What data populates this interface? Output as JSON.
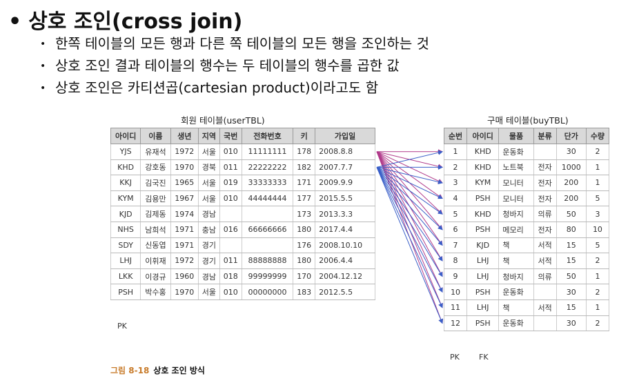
{
  "heading": "상호 조인(cross join)",
  "heading_bullet": "•",
  "bullets": [
    "한쪽 테이블의 모든 행과 다른 쪽 테이블의 모든 행을 조인하는 것",
    "상호 조인 결과 테이블의 행수는 두 테이블의 행수를 곱한 값",
    "상호 조인은 카티션곱(cartesian product)이라고도 함"
  ],
  "user_table": {
    "caption": "회원 테이블(userTBL)",
    "columns": [
      "아이디",
      "이름",
      "생년",
      "지역",
      "국번",
      "전화번호",
      "키",
      "가입일"
    ],
    "rows": [
      [
        "YJS",
        "유재석",
        "1972",
        "서울",
        "010",
        "11111111",
        "178",
        "2008.8.8"
      ],
      [
        "KHD",
        "강호동",
        "1970",
        "경북",
        "011",
        "22222222",
        "182",
        "2007.7.7"
      ],
      [
        "KKJ",
        "김국진",
        "1965",
        "서울",
        "019",
        "33333333",
        "171",
        "2009.9.9"
      ],
      [
        "KYM",
        "김용만",
        "1967",
        "서울",
        "010",
        "44444444",
        "177",
        "2015.5.5"
      ],
      [
        "KJD",
        "김제동",
        "1974",
        "경남",
        "",
        "",
        "173",
        "2013.3.3"
      ],
      [
        "NHS",
        "남희석",
        "1971",
        "충남",
        "016",
        "66666666",
        "180",
        "2017.4.4"
      ],
      [
        "SDY",
        "신동엽",
        "1971",
        "경기",
        "",
        "",
        "176",
        "2008.10.10"
      ],
      [
        "LHJ",
        "이휘재",
        "1972",
        "경기",
        "011",
        "88888888",
        "180",
        "2006.4.4"
      ],
      [
        "LKK",
        "이경규",
        "1960",
        "경남",
        "018",
        "99999999",
        "170",
        "2004.12.12"
      ],
      [
        "PSH",
        "박수홍",
        "1970",
        "서울",
        "010",
        "00000000",
        "183",
        "2012.5.5"
      ]
    ],
    "key_label": "PK"
  },
  "buy_table": {
    "caption": "구매 테이블(buyTBL)",
    "columns": [
      "순번",
      "아이디",
      "물품",
      "분류",
      "단가",
      "수량"
    ],
    "rows": [
      [
        "1",
        "KHD",
        "운동화",
        "",
        "30",
        "2"
      ],
      [
        "2",
        "KHD",
        "노트북",
        "전자",
        "1000",
        "1"
      ],
      [
        "3",
        "KYM",
        "모니터",
        "전자",
        "200",
        "1"
      ],
      [
        "4",
        "PSH",
        "모니터",
        "전자",
        "200",
        "5"
      ],
      [
        "5",
        "KHD",
        "청바지",
        "의류",
        "50",
        "3"
      ],
      [
        "6",
        "PSH",
        "메모리",
        "전자",
        "80",
        "10"
      ],
      [
        "7",
        "KJD",
        "책",
        "서적",
        "15",
        "5"
      ],
      [
        "8",
        "LHJ",
        "책",
        "서적",
        "15",
        "2"
      ],
      [
        "9",
        "LHJ",
        "청바지",
        "의류",
        "50",
        "1"
      ],
      [
        "10",
        "PSH",
        "운동화",
        "",
        "30",
        "2"
      ],
      [
        "11",
        "LHJ",
        "책",
        "서적",
        "15",
        "1"
      ],
      [
        "12",
        "PSH",
        "운동화",
        "",
        "30",
        "2"
      ]
    ],
    "key_labels": [
      "PK",
      "FK"
    ]
  },
  "figure_caption": {
    "number": "그림 8-18",
    "text": "상호 조인 방식"
  },
  "colors": {
    "header_bg": "#d9d9d9",
    "arrow_user_row1": "#b03a8a",
    "arrow_user_row2": "#3a5fc8",
    "figure_number": "#c87b2a"
  }
}
